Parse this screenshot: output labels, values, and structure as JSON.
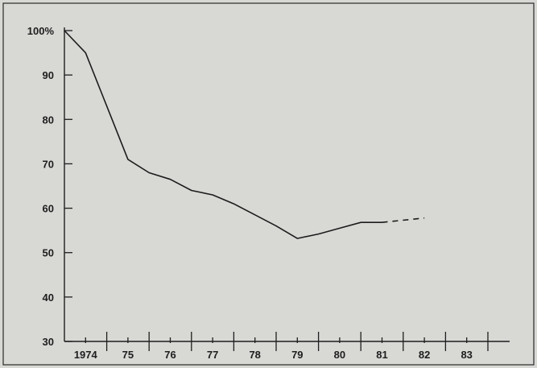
{
  "chart_data": {
    "type": "line",
    "title": "",
    "xlabel": "",
    "ylabel": "",
    "ylim": [
      30,
      100
    ],
    "yticks": [
      30,
      40,
      50,
      60,
      70,
      80,
      90,
      100
    ],
    "ytick_labels": [
      "30",
      "40",
      "50",
      "60",
      "70",
      "80",
      "90",
      "100%"
    ],
    "xlim": [
      1973.5,
      1983.5
    ],
    "xticks": [
      1974,
      1975,
      1976,
      1977,
      1978,
      1979,
      1980,
      1981,
      1982,
      1983
    ],
    "xtick_labels": [
      "1974",
      "75",
      "76",
      "77",
      "78",
      "79",
      "80",
      "81",
      "82",
      "83"
    ],
    "grid": false,
    "legend": "none",
    "series": [
      {
        "style": "solid",
        "x": [
          1973.5,
          1974.0,
          1974.5,
          1975.0,
          1975.5,
          1976.0,
          1976.5,
          1977.0,
          1977.5,
          1978.0,
          1978.5,
          1979.0,
          1979.5,
          1980.0,
          1980.5,
          1981.0
        ],
        "y": [
          100,
          95,
          83,
          71,
          68,
          66.5,
          64,
          63,
          61,
          58.5,
          56,
          53.2,
          54.2,
          55.5,
          56.8,
          56.8
        ]
      },
      {
        "style": "dashed",
        "x": [
          1981.0,
          1982.0
        ],
        "y": [
          56.8,
          57.8
        ]
      }
    ],
    "colors": {
      "line": "#1c1c1c",
      "background": "#d8d8d5"
    }
  }
}
